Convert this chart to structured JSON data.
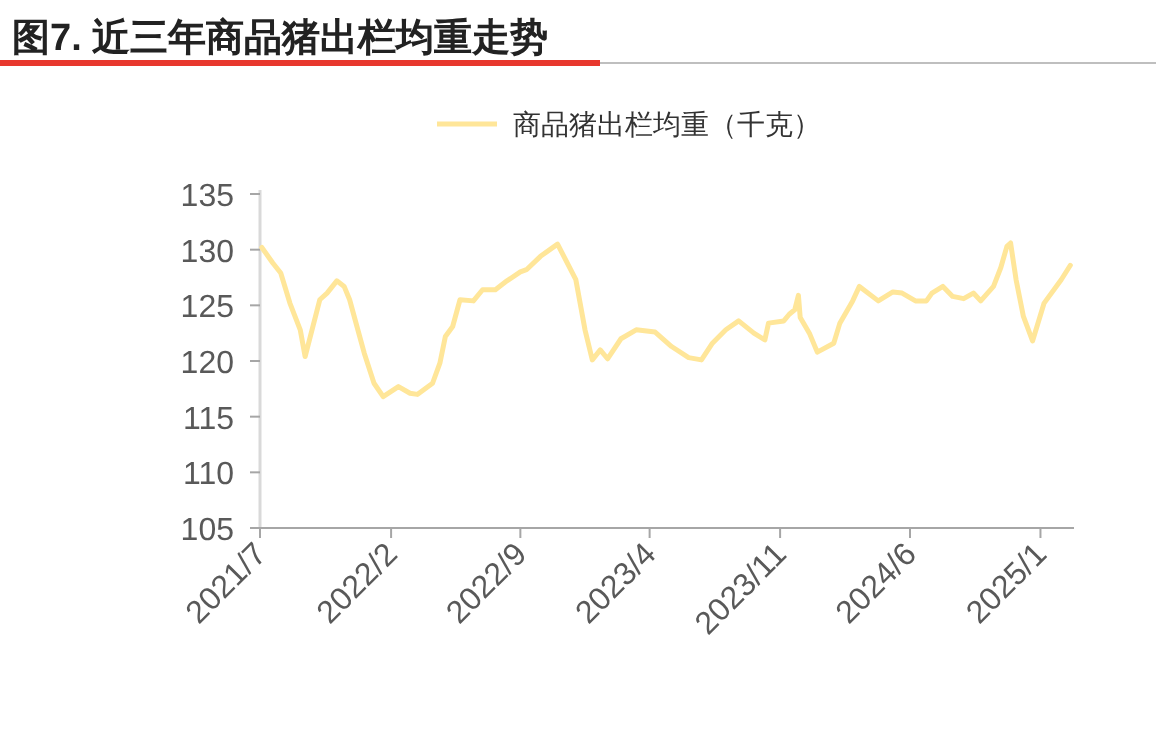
{
  "chart_data": {
    "type": "line",
    "title": "图7. 近三年商品猪出栏均重走势",
    "x": [
      "2021-07-04",
      "2021-07-22",
      "2021-08-04",
      "2021-08-19",
      "2021-09-05",
      "2021-09-13",
      "2021-10-07",
      "2021-10-19",
      "2021-11-04",
      "2021-11-16",
      "2021-11-25",
      "2021-12-07",
      "2021-12-19",
      "2022-01-04",
      "2022-01-19",
      "2022-02-13",
      "2022-03-04",
      "2022-03-16",
      "2022-04-10",
      "2022-04-22",
      "2022-05-01",
      "2022-05-13",
      "2022-05-25",
      "2022-06-16",
      "2022-07-01",
      "2022-07-22",
      "2022-08-10",
      "2022-09-01",
      "2022-09-11",
      "2022-10-04",
      "2022-11-01",
      "2022-12-01",
      "2022-12-16",
      "2022-12-28",
      "2023-01-10",
      "2023-01-22",
      "2023-02-13",
      "2023-03-10",
      "2023-04-10",
      "2023-05-07",
      "2023-06-04",
      "2023-06-25",
      "2023-07-13",
      "2023-08-04",
      "2023-08-25",
      "2023-09-19",
      "2023-10-07",
      "2023-10-13",
      "2023-11-07",
      "2023-11-16",
      "2023-11-25",
      "2023-12-01",
      "2023-12-04",
      "2023-12-19",
      "2024-01-01",
      "2024-01-28",
      "2024-02-07",
      "2024-02-28",
      "2024-03-10",
      "2024-04-10",
      "2024-05-04",
      "2024-05-19",
      "2024-06-10",
      "2024-06-28",
      "2024-07-07",
      "2024-07-25",
      "2024-08-10",
      "2024-08-28",
      "2024-09-13",
      "2024-09-25",
      "2024-10-16",
      "2024-10-28",
      "2024-11-07",
      "2024-11-13",
      "2024-11-22",
      "2024-12-04",
      "2024-12-19",
      "2025-01-07",
      "2025-02-04",
      "2025-02-19"
    ],
    "series": [
      {
        "name": "商品猪出栏均重（千克）",
        "color": "#ffe699",
        "values": [
          130.2,
          128.8,
          127.9,
          125.2,
          122.8,
          120.4,
          125.5,
          126.1,
          127.2,
          126.7,
          125.5,
          123.1,
          120.7,
          118.0,
          116.8,
          117.7,
          117.1,
          117.0,
          118.0,
          119.8,
          122.2,
          123.1,
          125.5,
          125.4,
          126.4,
          126.4,
          127.2,
          128.0,
          128.2,
          129.4,
          130.5,
          127.3,
          122.8,
          120.1,
          121.0,
          120.2,
          122.0,
          122.8,
          122.6,
          121.3,
          120.3,
          120.1,
          121.6,
          122.8,
          123.6,
          122.5,
          121.9,
          123.4,
          123.6,
          124.2,
          124.6,
          125.9,
          123.9,
          122.5,
          120.8,
          121.6,
          123.4,
          125.4,
          126.7,
          125.4,
          126.2,
          126.1,
          125.4,
          125.4,
          126.1,
          126.7,
          125.8,
          125.6,
          126.1,
          125.4,
          126.7,
          128.4,
          130.3,
          130.6,
          127.3,
          124.0,
          121.8,
          125.2,
          127.3,
          128.6
        ]
      }
    ],
    "xlim": [
      "2021-07-01",
      "2025-02-25"
    ],
    "xticks": [
      {
        "value": "2021-07-01",
        "label": "2021/7"
      },
      {
        "value": "2022-02-01",
        "label": "2022/2"
      },
      {
        "value": "2022-09-01",
        "label": "2022/9"
      },
      {
        "value": "2023-04-01",
        "label": "2023/4"
      },
      {
        "value": "2023-11-01",
        "label": "2023/11"
      },
      {
        "value": "2024-06-01",
        "label": "2024/6"
      },
      {
        "value": "2025-01-01",
        "label": "2025/1"
      }
    ],
    "ylim": [
      105,
      135
    ],
    "yticks": [
      105,
      110,
      115,
      120,
      125,
      130,
      135
    ],
    "grid": false,
    "legend": "top",
    "line_style": "solid",
    "marker": "none"
  }
}
